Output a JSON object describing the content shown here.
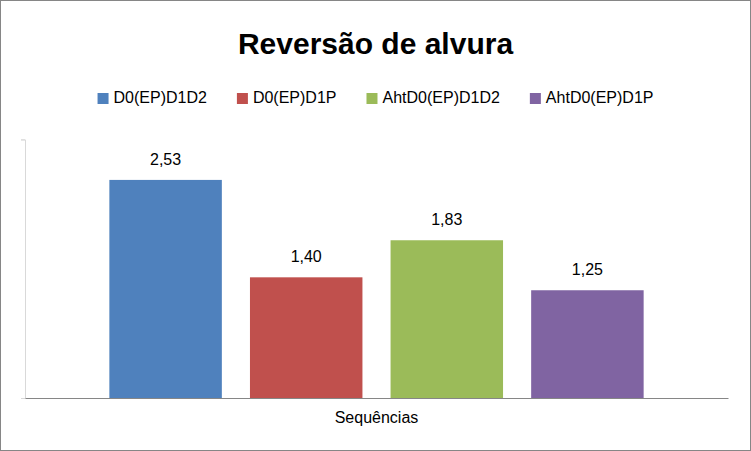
{
  "chart_data": {
    "type": "bar",
    "title": "Reversão de alvura",
    "categories": [
      "Sequências"
    ],
    "series": [
      {
        "name": "D0(EP)D1D2",
        "color": "#4f81bd",
        "values": [
          2.53
        ],
        "value_labels": [
          "2,53"
        ]
      },
      {
        "name": "D0(EP)D1P",
        "color": "#c0504d",
        "values": [
          1.4
        ],
        "value_labels": [
          "1,40"
        ]
      },
      {
        "name": "AhtD0(EP)D1D2",
        "color": "#9bbb59",
        "values": [
          1.83
        ],
        "value_labels": [
          "1,83"
        ]
      },
      {
        "name": "AhtD0(EP)D1P",
        "color": "#8064a2",
        "values": [
          1.25
        ],
        "value_labels": [
          "1,25"
        ]
      }
    ],
    "ylim": [
      0,
      3
    ],
    "yticks": [
      0,
      3
    ],
    "grid": false,
    "legend": "top",
    "data_labels": true,
    "tick_labels": "x"
  }
}
